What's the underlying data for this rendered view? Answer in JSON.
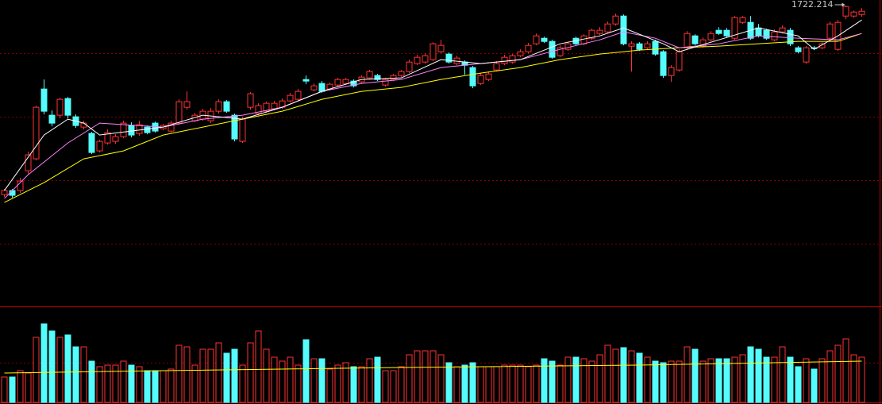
{
  "chart_data": {
    "type": "candlestick",
    "up_color": "#ff3232",
    "down_color": "#54fcfc",
    "ylim": [
      1344,
      1729.214
    ],
    "high_label": 1722.214,
    "ohlc": [
      [
        1484,
        1491,
        1481,
        1489
      ],
      [
        1489,
        1491,
        1480,
        1483
      ],
      [
        1489,
        1505,
        1486,
        1501
      ],
      [
        1514,
        1538,
        1510,
        1534
      ],
      [
        1529,
        1596,
        1527,
        1594
      ],
      [
        1617,
        1629,
        1585,
        1589
      ],
      [
        1584,
        1590,
        1570,
        1574
      ],
      [
        1584,
        1606,
        1580,
        1604
      ],
      [
        1605,
        1607,
        1580,
        1584
      ],
      [
        1582,
        1585,
        1568,
        1571
      ],
      [
        1569,
        1577,
        1566,
        1574
      ],
      [
        1561,
        1563,
        1535,
        1537
      ],
      [
        1539,
        1553,
        1537,
        1551
      ],
      [
        1549,
        1566,
        1547,
        1562
      ],
      [
        1551,
        1560,
        1548,
        1557
      ],
      [
        1557,
        1577,
        1555,
        1574
      ],
      [
        1571,
        1575,
        1556,
        1559
      ],
      [
        1561,
        1577,
        1558,
        1572
      ],
      [
        1569,
        1571,
        1560,
        1562
      ],
      [
        1574,
        1576,
        1562,
        1564
      ],
      [
        1567,
        1573,
        1565,
        1571
      ],
      [
        1564,
        1577,
        1562,
        1574
      ],
      [
        1574,
        1604,
        1572,
        1601
      ],
      [
        1594,
        1614,
        1591,
        1601
      ],
      [
        1577,
        1587,
        1575,
        1584
      ],
      [
        1579,
        1592,
        1577,
        1589
      ],
      [
        1577,
        1593,
        1574,
        1589
      ],
      [
        1589,
        1604,
        1586,
        1601
      ],
      [
        1601,
        1603,
        1587,
        1589
      ],
      [
        1584,
        1586,
        1551,
        1554
      ],
      [
        1551,
        1582,
        1549,
        1579
      ],
      [
        1594,
        1613,
        1591,
        1611
      ],
      [
        1586,
        1599,
        1584,
        1596
      ],
      [
        1589,
        1601,
        1587,
        1599
      ],
      [
        1592,
        1602,
        1590,
        1599
      ],
      [
        1594,
        1605,
        1592,
        1602
      ],
      [
        1602,
        1612,
        1600,
        1609
      ],
      [
        1604,
        1617,
        1602,
        1614
      ],
      [
        1629,
        1634,
        1623,
        1627
      ],
      [
        1616,
        1624,
        1614,
        1621
      ],
      [
        1624,
        1627,
        1612,
        1614
      ],
      [
        1617,
        1625,
        1615,
        1623
      ],
      [
        1622,
        1631,
        1620,
        1629
      ],
      [
        1624,
        1631,
        1622,
        1629
      ],
      [
        1627,
        1629,
        1619,
        1621
      ],
      [
        1626,
        1634,
        1624,
        1632
      ],
      [
        1631,
        1641,
        1629,
        1639
      ],
      [
        1634,
        1636,
        1627,
        1629
      ],
      [
        1622,
        1631,
        1620,
        1629
      ],
      [
        1629,
        1636,
        1627,
        1634
      ],
      [
        1634,
        1641,
        1632,
        1639
      ],
      [
        1639,
        1654,
        1637,
        1651
      ],
      [
        1649,
        1660,
        1647,
        1657
      ],
      [
        1651,
        1662,
        1649,
        1659
      ],
      [
        1654,
        1676,
        1652,
        1674
      ],
      [
        1664,
        1679,
        1662,
        1672
      ],
      [
        1661,
        1663,
        1649,
        1651
      ],
      [
        1649,
        1659,
        1647,
        1656
      ],
      [
        1651,
        1653,
        1635,
        1647
      ],
      [
        1644,
        1646,
        1618,
        1621
      ],
      [
        1624,
        1637,
        1622,
        1634
      ],
      [
        1629,
        1639,
        1627,
        1636
      ],
      [
        1641,
        1652,
        1639,
        1649
      ],
      [
        1649,
        1660,
        1647,
        1657
      ],
      [
        1651,
        1661,
        1649,
        1659
      ],
      [
        1659,
        1667,
        1657,
        1664
      ],
      [
        1664,
        1675,
        1662,
        1672
      ],
      [
        1674,
        1687,
        1672,
        1684
      ],
      [
        1681,
        1683,
        1675,
        1677
      ],
      [
        1677,
        1679,
        1655,
        1657
      ],
      [
        1659,
        1672,
        1657,
        1669
      ],
      [
        1667,
        1677,
        1665,
        1674
      ],
      [
        1681,
        1683,
        1672,
        1674
      ],
      [
        1674,
        1686,
        1672,
        1684
      ],
      [
        1681,
        1693,
        1679,
        1691
      ],
      [
        1687,
        1695,
        1685,
        1691
      ],
      [
        1689,
        1702,
        1687,
        1699
      ],
      [
        1699,
        1712,
        1697,
        1709
      ],
      [
        1709,
        1711,
        1672,
        1674
      ],
      [
        1671,
        1677,
        1639,
        1674
      ],
      [
        1674,
        1676,
        1665,
        1667
      ],
      [
        1669,
        1677,
        1667,
        1674
      ],
      [
        1677,
        1679,
        1659,
        1661
      ],
      [
        1664,
        1666,
        1631,
        1634
      ],
      [
        1634,
        1647,
        1626,
        1644
      ],
      [
        1641,
        1667,
        1639,
        1664
      ],
      [
        1669,
        1690,
        1667,
        1687
      ],
      [
        1684,
        1686,
        1672,
        1674
      ],
      [
        1671,
        1682,
        1669,
        1679
      ],
      [
        1679,
        1690,
        1677,
        1687
      ],
      [
        1691,
        1695,
        1685,
        1687
      ],
      [
        1691,
        1694,
        1682,
        1684
      ],
      [
        1681,
        1709,
        1679,
        1707
      ],
      [
        1701,
        1709,
        1699,
        1707
      ],
      [
        1701,
        1709,
        1679,
        1681
      ],
      [
        1694,
        1699,
        1682,
        1684
      ],
      [
        1691,
        1693,
        1679,
        1681
      ],
      [
        1679,
        1692,
        1677,
        1689
      ],
      [
        1689,
        1697,
        1687,
        1694
      ],
      [
        1691,
        1694,
        1671,
        1674
      ],
      [
        1669,
        1671,
        1662,
        1664
      ],
      [
        1651,
        1671,
        1649,
        1669
      ],
      [
        1669,
        1671,
        1666,
        1668
      ],
      [
        1669,
        1676,
        1667,
        1674
      ],
      [
        1681,
        1702,
        1679,
        1699
      ],
      [
        1667,
        1704,
        1665,
        1701
      ],
      [
        1709,
        1722.214,
        1705,
        1721
      ],
      [
        1709,
        1716,
        1707,
        1714
      ],
      [
        1711,
        1719,
        1708,
        1715
      ]
    ],
    "lines": [
      {
        "color": "#ffff00",
        "x": [
          0,
          5,
          10,
          15,
          20,
          25,
          30,
          35,
          40,
          45,
          50,
          55,
          60,
          65,
          70,
          75,
          80,
          85,
          90,
          95,
          100,
          105,
          108
        ],
        "values": [
          1474,
          1499,
          1529,
          1539,
          1559,
          1569,
          1579,
          1589,
          1604,
          1614,
          1619,
          1629,
          1637,
          1644,
          1654,
          1661,
          1666,
          1669,
          1671,
          1674,
          1677,
          1677,
          1687
        ]
      },
      {
        "color": "#ff80ff",
        "x": [
          0,
          3,
          8,
          12,
          20,
          25,
          30,
          35,
          40,
          45,
          50,
          55,
          60,
          65,
          70,
          75,
          78,
          82,
          85,
          90,
          95,
          100,
          105,
          108
        ],
        "values": [
          1479,
          1509,
          1549,
          1574,
          1569,
          1579,
          1584,
          1594,
          1614,
          1624,
          1629,
          1644,
          1649,
          1654,
          1667,
          1679,
          1689,
          1681,
          1669,
          1674,
          1684,
          1681,
          1679,
          1687
        ]
      },
      {
        "color": "#ffffff",
        "x": [
          0,
          5,
          8,
          10,
          12,
          20,
          25,
          30,
          35,
          40,
          45,
          50,
          55,
          60,
          65,
          70,
          75,
          78,
          83,
          85,
          90,
          95,
          100,
          102,
          105,
          108
        ],
        "values": [
          1489,
          1559,
          1579,
          1574,
          1559,
          1569,
          1584,
          1579,
          1594,
          1614,
          1629,
          1631,
          1654,
          1649,
          1654,
          1674,
          1684,
          1694,
          1674,
          1664,
          1679,
          1694,
          1684,
          1667,
          1684,
          1704
        ]
      }
    ],
    "volume": {
      "ylim": [
        0,
        120
      ],
      "values": [
        32,
        32,
        40,
        37,
        82,
        99,
        90,
        82,
        85,
        70,
        70,
        52,
        45,
        47,
        47,
        52,
        47,
        45,
        40,
        40,
        40,
        42,
        72,
        70,
        47,
        67,
        67,
        75,
        62,
        67,
        47,
        75,
        90,
        67,
        57,
        52,
        57,
        47,
        79,
        55,
        55,
        42,
        47,
        50,
        45,
        45,
        55,
        57,
        40,
        40,
        45,
        60,
        65,
        65,
        65,
        60,
        50,
        45,
        47,
        50,
        45,
        45,
        45,
        47,
        47,
        47,
        45,
        47,
        55,
        52,
        47,
        57,
        57,
        55,
        52,
        60,
        72,
        67,
        69,
        65,
        62,
        57,
        52,
        50,
        52,
        52,
        70,
        67,
        52,
        55,
        55,
        55,
        57,
        60,
        70,
        67,
        57,
        57,
        70,
        57,
        45,
        55,
        42,
        55,
        65,
        72,
        80,
        60,
        57
      ],
      "line": {
        "color": "#ffff00",
        "x": [
          0,
          20,
          50,
          80,
          108
        ],
        "values": [
          37,
          40,
          44,
          47,
          52
        ]
      }
    }
  }
}
